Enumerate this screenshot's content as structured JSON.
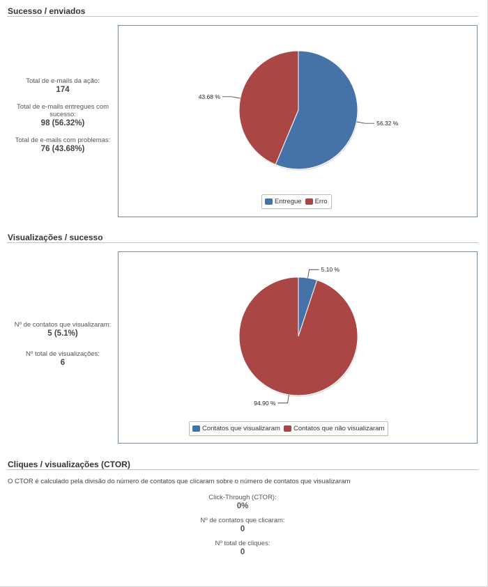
{
  "sections": {
    "sucesso": {
      "title": "Sucesso / enviados",
      "stats": [
        {
          "label": "Total de e-mails da ação:",
          "value": "174"
        },
        {
          "label": "Total de e-mails entregues com sucesso:",
          "value": "98 (56.32%)"
        },
        {
          "label": "Total de e-mails com problemas:",
          "value": "76 (43.68%)"
        }
      ]
    },
    "visualizacoes": {
      "title": "Visualizações / sucesso",
      "stats": [
        {
          "label": "Nº de contatos que visualizaram:",
          "value": "5 (5.1%)"
        },
        {
          "label": "Nº total de visualizações:",
          "value": "6"
        }
      ]
    },
    "cliques": {
      "title": "Cliques / visualizações (CTOR)",
      "note": "O CTOR é calculado pela divisão do número de contatos que clicaram sobre o número de contatos que visualizaram",
      "stats": [
        {
          "label": "Click-Through (CTOR):",
          "value": "0%"
        },
        {
          "label": "Nº de contatos que clicaram:",
          "value": "0"
        },
        {
          "label": "Nº total de cliques:",
          "value": "0"
        }
      ]
    }
  },
  "chart_data": [
    {
      "type": "pie",
      "title": "",
      "slices": [
        {
          "name": "Entregue",
          "value": 56.32,
          "label": "56.32 %",
          "color": "#4572a7"
        },
        {
          "name": "Erro",
          "value": 43.68,
          "label": "43.68 %",
          "color": "#aa4643"
        }
      ],
      "legend_position": "bottom-center"
    },
    {
      "type": "pie",
      "title": "",
      "slices": [
        {
          "name": "Contatos que visualizaram",
          "value": 5.1,
          "label": "5.10 %",
          "color": "#4572a7"
        },
        {
          "name": "Contatos que não visualizaram",
          "value": 94.9,
          "label": "94.90 %",
          "color": "#aa4643"
        }
      ],
      "legend_position": "bottom-center"
    }
  ]
}
